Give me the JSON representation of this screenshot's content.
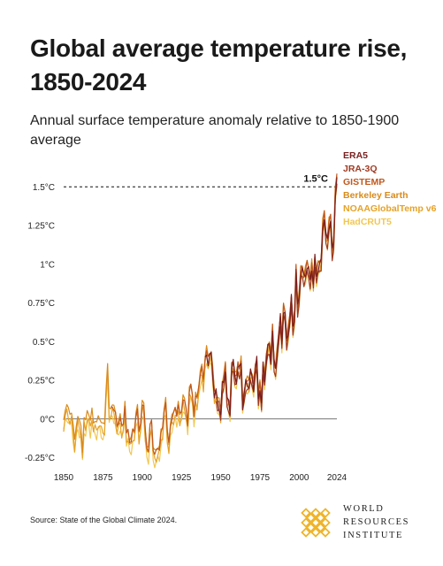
{
  "header": {
    "title": "Global average temperature rise, 1850-2024",
    "subtitle": "Annual surface temperature anomaly relative to 1850-1900 average"
  },
  "footer": {
    "source": "Source: State of the Global Climate 2024.",
    "logo_lines": [
      "WORLD",
      "RESOURCES",
      "INSTITUTE"
    ]
  },
  "colors": {
    "logo": "#f0b429"
  },
  "chart_data": {
    "type": "line",
    "title": "Global average temperature rise, 1850-2024",
    "subtitle": "Annual surface temperature anomaly relative to 1850-1900 average",
    "xlabel": "",
    "ylabel": "",
    "xlim": [
      1850,
      2024
    ],
    "ylim": [
      -0.35,
      1.65
    ],
    "x_ticks": [
      1850,
      1875,
      1900,
      1925,
      1950,
      1975,
      2000,
      2024
    ],
    "x_tick_labels": [
      "1850",
      "1875",
      "1900",
      "1925",
      "1950",
      "1975",
      "2000",
      "2024"
    ],
    "y_ticks": [
      -0.25,
      0,
      0.25,
      0.5,
      0.75,
      1,
      1.25,
      1.5
    ],
    "y_tick_labels": [
      "-0.25°C",
      "0°C",
      "0.25°C",
      "0.5°C",
      "0.75°C",
      "1°C",
      "1.25°C",
      "1.5°C"
    ],
    "legend_position": "top-right",
    "reference_line": {
      "y": 1.5,
      "label": "1.5°C",
      "style": "dashed"
    },
    "zero_line": true,
    "base_years": [
      1850,
      1851,
      1852,
      1853,
      1854,
      1855,
      1856,
      1857,
      1858,
      1859,
      1860,
      1861,
      1862,
      1863,
      1864,
      1865,
      1866,
      1867,
      1868,
      1869,
      1870,
      1871,
      1872,
      1873,
      1874,
      1875,
      1876,
      1877,
      1878,
      1879,
      1880,
      1881,
      1882,
      1883,
      1884,
      1885,
      1886,
      1887,
      1888,
      1889,
      1890,
      1891,
      1892,
      1893,
      1894,
      1895,
      1896,
      1897,
      1898,
      1899,
      1900,
      1901,
      1902,
      1903,
      1904,
      1905,
      1906,
      1907,
      1908,
      1909,
      1910,
      1911,
      1912,
      1913,
      1914,
      1915,
      1916,
      1917,
      1918,
      1919,
      1920,
      1921,
      1922,
      1923,
      1924,
      1925,
      1926,
      1927,
      1928,
      1929,
      1930,
      1931,
      1932,
      1933,
      1934,
      1935,
      1936,
      1937,
      1938,
      1939,
      1940,
      1941,
      1942,
      1943,
      1944,
      1945,
      1946,
      1947,
      1948,
      1949,
      1950,
      1951,
      1952,
      1953,
      1954,
      1955,
      1956,
      1957,
      1958,
      1959,
      1960,
      1961,
      1962,
      1963,
      1964,
      1965,
      1966,
      1967,
      1968,
      1969,
      1970,
      1971,
      1972,
      1973,
      1974,
      1975,
      1976,
      1977,
      1978,
      1979,
      1980,
      1981,
      1982,
      1983,
      1984,
      1985,
      1986,
      1987,
      1988,
      1989,
      1990,
      1991,
      1992,
      1993,
      1994,
      1995,
      1996,
      1997,
      1998,
      1999,
      2000,
      2001,
      2002,
      2003,
      2004,
      2005,
      2006,
      2007,
      2008,
      2009,
      2010,
      2011,
      2012,
      2013,
      2014,
      2015,
      2016,
      2017,
      2018,
      2019,
      2020,
      2021,
      2022,
      2023,
      2024
    ],
    "base_values": [
      -0.04,
      0.05,
      0.06,
      0.02,
      0.01,
      0.03,
      -0.08,
      -0.18,
      -0.06,
      0.0,
      -0.06,
      -0.08,
      -0.22,
      -0.02,
      -0.06,
      0.03,
      0.02,
      -0.05,
      0.02,
      -0.04,
      -0.03,
      -0.07,
      -0.02,
      -0.01,
      -0.05,
      -0.08,
      -0.06,
      0.18,
      0.32,
      0.02,
      0.05,
      0.08,
      0.04,
      0.0,
      -0.06,
      -0.03,
      -0.02,
      -0.08,
      -0.04,
      0.08,
      -0.13,
      -0.1,
      -0.15,
      -0.16,
      -0.11,
      -0.1,
      0.02,
      0.04,
      -0.12,
      -0.04,
      0.09,
      0.05,
      -0.1,
      -0.19,
      -0.22,
      -0.08,
      -0.03,
      -0.2,
      -0.25,
      -0.24,
      -0.2,
      -0.2,
      -0.12,
      -0.09,
      0.06,
      0.1,
      -0.12,
      -0.18,
      -0.04,
      -0.02,
      0.0,
      0.06,
      0.02,
      0.06,
      0.0,
      0.04,
      0.12,
      0.08,
      0.04,
      -0.04,
      0.16,
      0.18,
      0.14,
      0.02,
      0.12,
      0.1,
      0.2,
      0.28,
      0.3,
      0.22,
      0.38,
      0.43,
      0.36,
      0.4,
      0.42,
      0.28,
      0.14,
      0.17,
      0.11,
      0.08,
      0.02,
      0.22,
      0.25,
      0.32,
      0.12,
      0.11,
      0.05,
      0.32,
      0.36,
      0.28,
      0.25,
      0.33,
      0.32,
      0.37,
      0.08,
      0.15,
      0.24,
      0.23,
      0.21,
      0.3,
      0.27,
      0.2,
      0.31,
      0.38,
      0.14,
      0.2,
      0.09,
      0.35,
      0.26,
      0.37,
      0.46,
      0.48,
      0.38,
      0.57,
      0.36,
      0.33,
      0.42,
      0.53,
      0.66,
      0.5,
      0.7,
      0.67,
      0.51,
      0.56,
      0.63,
      0.78,
      0.6,
      0.65,
      0.96,
      0.72,
      0.8,
      0.94,
      0.96,
      0.92,
      0.94,
      0.98,
      0.96,
      0.9,
      0.98,
      0.87,
      1.04,
      0.93,
      0.97,
      0.99,
      1.02,
      1.25,
      1.3,
      1.18,
      1.16,
      1.25,
      1.28,
      1.08,
      1.15,
      1.45,
      1.55
    ],
    "series": [
      {
        "name": "ERA5",
        "start_year": 1940,
        "offset": 0.0,
        "color": "#7a1f1f"
      },
      {
        "name": "JRA-3Q",
        "start_year": 1947,
        "offset": -0.04,
        "color": "#9e3a22"
      },
      {
        "name": "GISTEMP",
        "start_year": 1880,
        "offset": 0.02,
        "color": "#c1581e"
      },
      {
        "name": "Berkeley Earth",
        "start_year": 1850,
        "offset": 0.03,
        "color": "#d98a1a"
      },
      {
        "name": "NOAAGlobalTemp v6",
        "start_year": 1850,
        "offset": -0.02,
        "color": "#e6a227"
      },
      {
        "name": "HadCRUT5",
        "start_year": 1850,
        "offset": -0.05,
        "color": "#f2c750"
      }
    ]
  }
}
